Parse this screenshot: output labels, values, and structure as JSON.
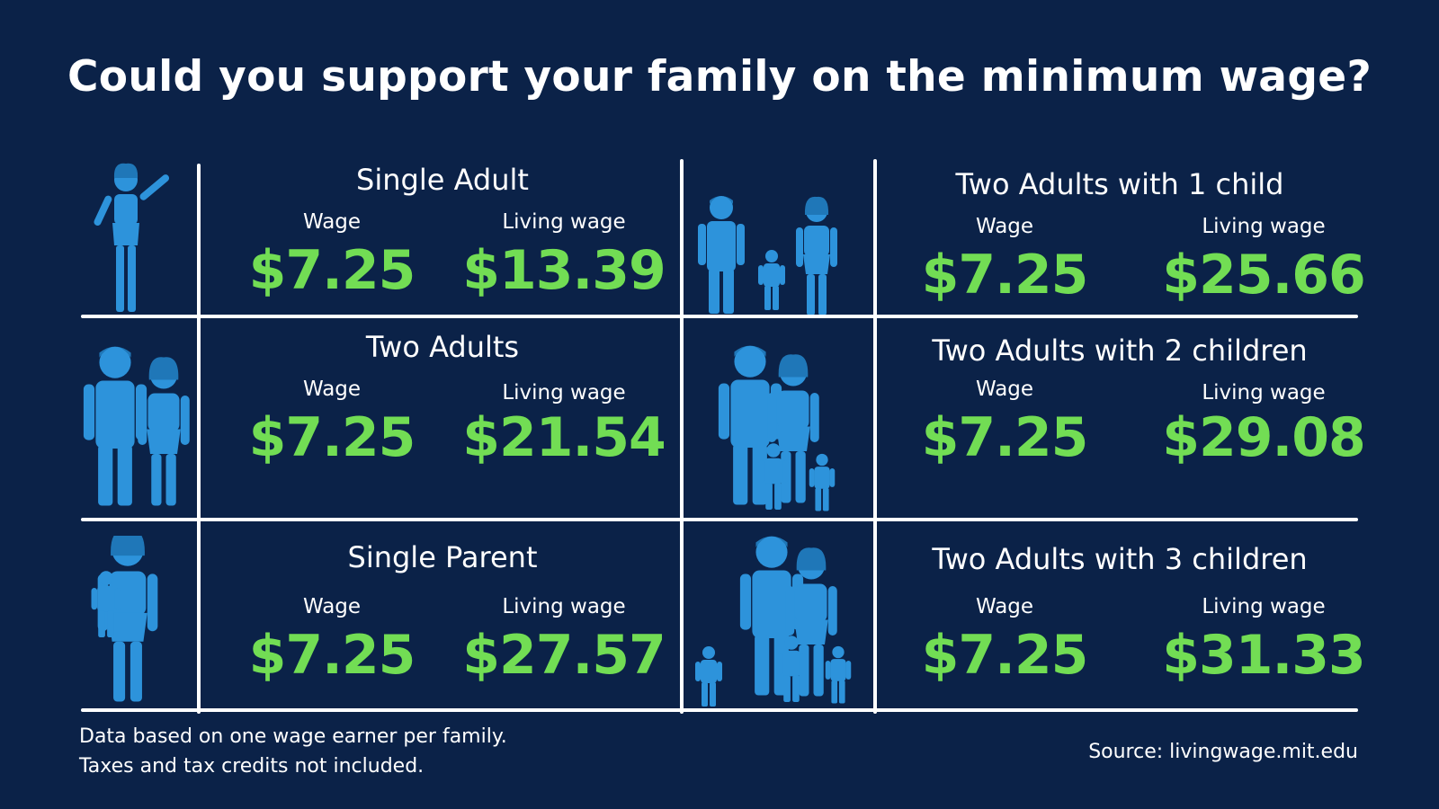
{
  "title": "Could you support your family on the minimum wage?",
  "colors": {
    "background": "#0b2248",
    "value": "#72dd54",
    "figure": "#2d93db",
    "text": "#ffffff"
  },
  "labels": {
    "wage": "Wage",
    "living": "Living wage"
  },
  "cells": [
    {
      "title": "Single Adult",
      "wage": "$7.25",
      "living": "$13.39",
      "icon": "single-adult-icon"
    },
    {
      "title": "Two Adults",
      "wage": "$7.25",
      "living": "$21.54",
      "icon": "two-adults-icon"
    },
    {
      "title": "Single Parent",
      "wage": "$7.25",
      "living": "$27.57",
      "icon": "single-parent-icon"
    },
    {
      "title": "Two Adults with 1 child",
      "wage": "$7.25",
      "living": "$25.66",
      "icon": "family-one-child-icon"
    },
    {
      "title": "Two Adults with 2 children",
      "wage": "$7.25",
      "living": "$29.08",
      "icon": "family-two-children-icon"
    },
    {
      "title": "Two Adults with 3 children",
      "wage": "$7.25",
      "living": "$31.33",
      "icon": "family-three-children-icon"
    }
  ],
  "footnote": {
    "line1": "Data based on one wage earner per family.",
    "line2": "Taxes and tax credits not included."
  },
  "source": "Source: livingwage.mit.edu"
}
